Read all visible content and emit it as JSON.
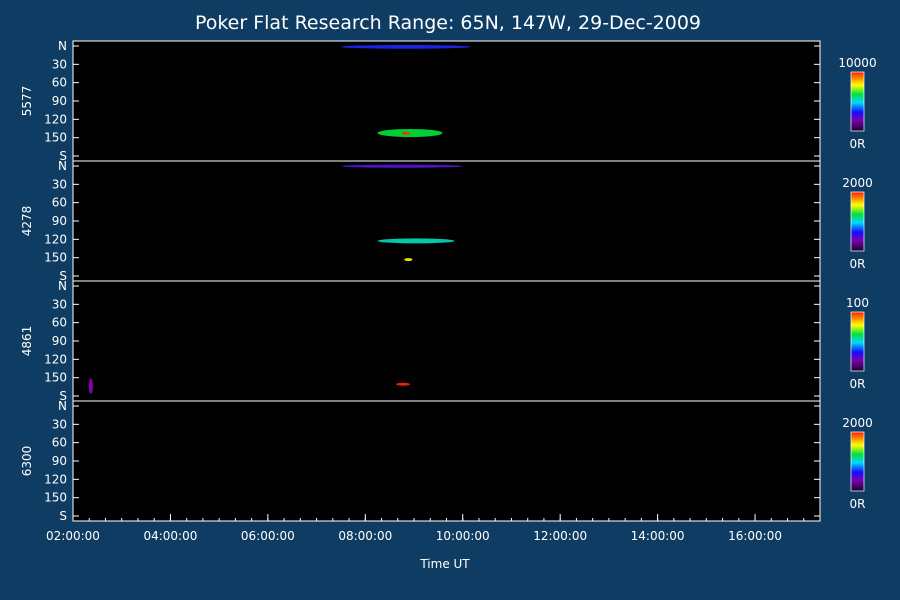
{
  "title": "Poker Flat Research Range: 65N, 147W, 29-Dec-2009",
  "xlabel": "Time UT",
  "colors": {
    "background": "#0f3c62",
    "panel": "#000000",
    "axis": "#ffffff"
  },
  "chart_data": {
    "type": "heatmap",
    "x_range": [
      "02:00:00",
      "17:20:00"
    ],
    "x_ticks": [
      "02:00:00",
      "04:00:00",
      "06:00:00",
      "08:00:00",
      "10:00:00",
      "12:00:00",
      "14:00:00",
      "16:00:00"
    ],
    "y_ticks": [
      "N",
      "30",
      "60",
      "90",
      "120",
      "150",
      "S"
    ],
    "panels": [
      {
        "ylabel": "5577",
        "cbar_max": "10000",
        "cbar_min": "0R",
        "features": [
          {
            "t_start": "07:30",
            "t_end": "10:10",
            "y_start": 0,
            "y_end": 6,
            "level": 0.5
          },
          {
            "t_start": "08:15",
            "t_end": "09:35",
            "y_start": 135,
            "y_end": 148,
            "level": 0.8
          },
          {
            "t_start": "08:45",
            "t_end": "08:55",
            "y_start": 140,
            "y_end": 144,
            "level": 1.0
          }
        ]
      },
      {
        "ylabel": "4278",
        "cbar_max": "2000",
        "cbar_min": "0R",
        "features": [
          {
            "t_start": "07:30",
            "t_end": "10:00",
            "y_start": 0,
            "y_end": 4,
            "level": 0.4
          },
          {
            "t_start": "08:15",
            "t_end": "09:50",
            "y_start": 118,
            "y_end": 126,
            "level": 0.7
          },
          {
            "t_start": "08:48",
            "t_end": "08:58",
            "y_start": 150,
            "y_end": 154,
            "level": 0.9
          }
        ]
      },
      {
        "ylabel": "4861",
        "cbar_max": "100",
        "cbar_min": "0R",
        "features": [
          {
            "t_start": "08:38",
            "t_end": "08:55",
            "y_start": 158,
            "y_end": 161,
            "level": 1.0
          },
          {
            "t_start": "02:20",
            "t_end": "02:24",
            "y_start": 150,
            "y_end": 175,
            "level": 0.3
          }
        ]
      },
      {
        "ylabel": "6300",
        "cbar_max": "2000",
        "cbar_min": "0R",
        "features": []
      }
    ]
  }
}
